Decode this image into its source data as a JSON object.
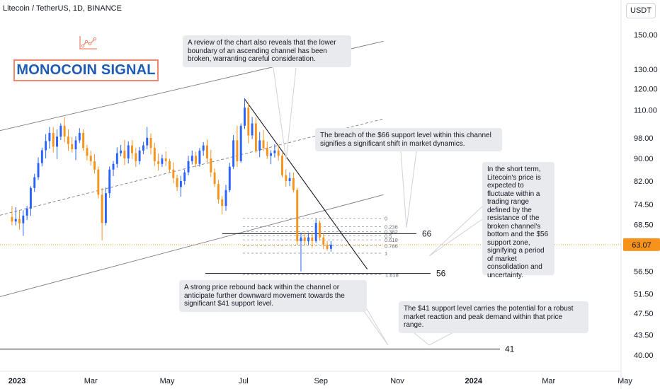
{
  "header": {
    "symbol": "Litecoin / TetherUS, 1D, BINANCE",
    "currency": "USDT"
  },
  "brand": {
    "name": "MONOCOIN SIGNAL"
  },
  "annotations": [
    {
      "id": "n1",
      "text": "A review of the chart also reveals that the lower boundary of an ascending channel has been broken, warranting careful consideration."
    },
    {
      "id": "n2",
      "text": "The breach of the $66 support level within this channel signifies a significant shift in market dynamics."
    },
    {
      "id": "n3",
      "text": "In the short term, Litecoin's price is expected to fluctuate within a trading range defined by the resistance of the broken channel's bottom and the $56 support zone, signifying a period of market consolidation and uncertainty."
    },
    {
      "id": "n4",
      "text": "A strong price rebound back within the channel or anticipate further downward movement towards the significant $41 support level."
    },
    {
      "id": "n5",
      "text": "The $41 support level carries the potential for a robust market reaction and peak demand within that price range."
    }
  ],
  "colors": {
    "up": "#2962ff",
    "down": "#f7931a",
    "current_price": "#f7931a",
    "channel": "#787b86",
    "fib": "#9598a1",
    "brand": "#1e5bb5",
    "brand_border": "#f0876e"
  },
  "chart_data": {
    "type": "candlestick",
    "symbol": "LTCUSDT",
    "timeframe": "1D",
    "y_axis": {
      "scale": "log",
      "ticks": [
        150.0,
        130.0,
        120.0,
        110.0,
        98.0,
        90.0,
        82.0,
        74.5,
        68.5,
        63.07,
        56.5,
        51.5,
        47.5,
        43.5,
        40.0
      ],
      "tick_labels": [
        "150.00",
        "130.00",
        "120.00",
        "110.00",
        "98.00",
        "90.00",
        "82.00",
        "74.50",
        "68.50",
        "",
        "56.50",
        "51.50",
        "47.50",
        "43.50",
        "40.00"
      ]
    },
    "x_axis": {
      "labels": [
        "2023",
        "Mar",
        "May",
        "Jul",
        "Sep",
        "Nov",
        "2024",
        "Mar",
        "May"
      ],
      "bold": [
        "2023",
        "2024"
      ]
    },
    "current_price": {
      "value": 63.07,
      "label": "63.07"
    },
    "levels": [
      {
        "value": 66,
        "label": "66"
      },
      {
        "value": 56,
        "label": "56"
      },
      {
        "value": 41,
        "label": "41"
      }
    ],
    "fibonacci": {
      "high": 70.3,
      "low": 60.9,
      "levels": [
        {
          "ratio": 0,
          "label": "0"
        },
        {
          "ratio": 0.236,
          "label": "0.236"
        },
        {
          "ratio": 0.382,
          "label": "0.382"
        },
        {
          "ratio": 0.5,
          "label": "0.5"
        },
        {
          "ratio": 0.618,
          "label": "0.618"
        },
        {
          "ratio": 0.786,
          "label": "0.786"
        },
        {
          "ratio": 1,
          "label": "1"
        },
        {
          "ratio": 1.618,
          "label": "1.618"
        }
      ]
    },
    "channel": {
      "upper": [
        [
          "2022-12-27",
          102
        ],
        [
          "2023-10-21",
          146
        ]
      ],
      "mid": [
        [
          "2022-12-27",
          72
        ],
        [
          "2023-10-21",
          106
        ]
      ],
      "lower": [
        [
          "2022-12-27",
          51.5
        ],
        [
          "2023-10-21",
          77.5
        ]
      ]
    },
    "trendline": [
      [
        "2023-07-02",
        115
      ],
      [
        "2023-10-08",
        57
      ]
    ],
    "candles": [
      [
        "2022-12-28",
        70.7,
        74.0,
        68.3,
        69.4
      ],
      [
        "2022-12-31",
        69.4,
        73.6,
        68.3,
        70.1
      ],
      [
        "2023-01-03",
        70.1,
        72.6,
        67.1,
        68.9
      ],
      [
        "2023-01-06",
        68.9,
        72.7,
        65.4,
        71.1
      ],
      [
        "2023-01-09",
        71.1,
        74.0,
        69.8,
        73.2
      ],
      [
        "2023-01-12",
        73.2,
        80.3,
        71.0,
        79.7
      ],
      [
        "2023-01-15",
        79.7,
        84.5,
        78.4,
        83.3
      ],
      [
        "2023-01-18",
        83.3,
        90.4,
        82.4,
        88.3
      ],
      [
        "2023-01-21",
        88.3,
        94.1,
        87.1,
        93.1
      ],
      [
        "2023-01-24",
        93.1,
        99.5,
        90.0,
        96.7
      ],
      [
        "2023-01-27",
        96.7,
        102.5,
        93.7,
        100.0
      ],
      [
        "2023-01-30",
        100.0,
        102.5,
        92.3,
        94.5
      ],
      [
        "2023-02-02",
        94.5,
        101.5,
        89.8,
        98.5
      ],
      [
        "2023-02-05",
        98.5,
        104.0,
        97.1,
        103.0
      ],
      [
        "2023-02-08",
        103.0,
        106.7,
        96.2,
        98.5
      ],
      [
        "2023-02-11",
        98.5,
        101.5,
        92.9,
        95.5
      ],
      [
        "2023-02-14",
        95.5,
        98.3,
        92.3,
        93.5
      ],
      [
        "2023-02-17",
        93.5,
        98.7,
        89.4,
        97.0
      ],
      [
        "2023-02-20",
        97.0,
        102.0,
        95.9,
        100.0
      ],
      [
        "2023-02-23",
        100.0,
        101.5,
        92.9,
        94.0
      ],
      [
        "2023-02-26",
        94.0,
        95.2,
        89.3,
        91.0
      ],
      [
        "2023-03-01",
        91.0,
        92.9,
        87.4,
        89.0
      ],
      [
        "2023-03-04",
        89.0,
        91.6,
        84.6,
        86.0
      ],
      [
        "2023-03-07",
        86.0,
        87.1,
        76.3,
        77.5
      ],
      [
        "2023-03-10",
        77.5,
        79.6,
        64.2,
        69.0
      ],
      [
        "2023-03-13",
        69.0,
        79.8,
        68.3,
        78.0
      ],
      [
        "2023-03-16",
        78.0,
        87.1,
        76.5,
        86.0
      ],
      [
        "2023-03-19",
        86.0,
        89.1,
        83.7,
        88.0
      ],
      [
        "2023-03-22",
        88.0,
        94.2,
        86.6,
        92.0
      ],
      [
        "2023-03-25",
        92.0,
        95.2,
        90.8,
        93.0
      ],
      [
        "2023-03-28",
        93.0,
        97.2,
        87.6,
        90.0
      ],
      [
        "2023-03-31",
        90.0,
        96.6,
        88.2,
        95.0
      ],
      [
        "2023-04-03",
        95.0,
        97.1,
        89.8,
        92.0
      ],
      [
        "2023-04-06",
        92.0,
        94.0,
        86.9,
        89.0
      ],
      [
        "2023-04-09",
        89.0,
        94.4,
        87.8,
        93.0
      ],
      [
        "2023-04-12",
        93.0,
        96.4,
        91.6,
        95.0
      ],
      [
        "2023-04-15",
        95.0,
        102.5,
        93.5,
        98.0
      ],
      [
        "2023-04-18",
        98.0,
        99.8,
        91.5,
        94.0
      ],
      [
        "2023-04-21",
        94.0,
        96.0,
        87.2,
        89.0
      ],
      [
        "2023-04-24",
        89.0,
        91.8,
        85.6,
        88.0
      ],
      [
        "2023-04-27",
        88.0,
        91.4,
        86.9,
        90.0
      ],
      [
        "2023-04-30",
        90.0,
        92.7,
        87.2,
        89.0
      ],
      [
        "2023-05-03",
        89.0,
        89.9,
        85.1,
        86.0
      ],
      [
        "2023-05-06",
        86.0,
        88.6,
        81.3,
        83.0
      ],
      [
        "2023-05-09",
        83.0,
        84.2,
        78.7,
        80.0
      ],
      [
        "2023-05-12",
        80.0,
        83.8,
        76.9,
        82.0
      ],
      [
        "2023-05-15",
        82.0,
        86.0,
        80.8,
        85.0
      ],
      [
        "2023-05-18",
        85.0,
        91.0,
        84.0,
        89.0
      ],
      [
        "2023-05-21",
        89.0,
        93.0,
        87.8,
        91.0
      ],
      [
        "2023-05-24",
        91.0,
        92.5,
        86.8,
        88.0
      ],
      [
        "2023-05-27",
        88.0,
        94.0,
        87.0,
        93.0
      ],
      [
        "2023-05-30",
        93.0,
        96.3,
        91.0,
        95.0
      ],
      [
        "2023-06-02",
        95.0,
        97.3,
        88.6,
        90.0
      ],
      [
        "2023-06-05",
        90.0,
        93.3,
        83.4,
        85.0
      ],
      [
        "2023-06-08",
        85.0,
        86.4,
        80.0,
        81.0
      ],
      [
        "2023-06-11",
        81.0,
        82.4,
        74.7,
        76.0
      ],
      [
        "2023-06-14",
        76.0,
        77.1,
        71.5,
        74.0
      ],
      [
        "2023-06-17",
        74.0,
        80.7,
        72.5,
        79.0
      ],
      [
        "2023-06-20",
        79.0,
        88.4,
        78.3,
        87.0
      ],
      [
        "2023-06-23",
        87.0,
        99.1,
        86.2,
        97.0
      ],
      [
        "2023-06-26",
        97.0,
        103.0,
        86.9,
        89.0
      ],
      [
        "2023-06-29",
        89.0,
        104.0,
        88.5,
        103.0
      ],
      [
        "2023-07-02",
        103.0,
        115.4,
        101.6,
        111.0
      ],
      [
        "2023-07-05",
        111.0,
        113.2,
        95.8,
        99.0
      ],
      [
        "2023-07-08",
        99.0,
        106.8,
        97.5,
        104.0
      ],
      [
        "2023-07-11",
        104.0,
        106.7,
        92.1,
        93.0
      ],
      [
        "2023-07-14",
        93.0,
        100.4,
        90.5,
        97.0
      ],
      [
        "2023-07-17",
        97.0,
        101.2,
        92.8,
        94.0
      ],
      [
        "2023-07-20",
        94.0,
        96.4,
        89.8,
        91.0
      ],
      [
        "2023-07-23",
        91.0,
        93.1,
        87.9,
        92.0
      ],
      [
        "2023-07-26",
        92.0,
        95.4,
        90.4,
        93.0
      ],
      [
        "2023-07-29",
        93.0,
        95.1,
        89.2,
        91.0
      ],
      [
        "2023-08-01",
        91.0,
        92.1,
        83.3,
        84.0
      ],
      [
        "2023-08-04",
        84.0,
        86.1,
        80.1,
        82.0
      ],
      [
        "2023-08-07",
        82.0,
        85.0,
        80.3,
        83.0
      ],
      [
        "2023-08-10",
        83.0,
        84.9,
        78.2,
        79.0
      ],
      [
        "2023-08-13",
        79.0,
        79.7,
        63.1,
        64.0
      ],
      [
        "2023-08-16",
        64.0,
        66.3,
        56.5,
        65.0
      ],
      [
        "2023-08-19",
        65.0,
        66.3,
        62.9,
        64.0
      ],
      [
        "2023-08-22",
        64.0,
        66.3,
        63.0,
        65.0
      ],
      [
        "2023-08-25",
        65.0,
        66.0,
        62.3,
        64.0
      ],
      [
        "2023-08-28",
        64.0,
        70.2,
        63.5,
        69.0
      ],
      [
        "2023-08-31",
        69.0,
        69.7,
        64.1,
        65.0
      ],
      [
        "2023-09-03",
        65.0,
        66.0,
        61.9,
        63.0
      ],
      [
        "2023-09-06",
        63.0,
        64.0,
        61.5,
        62.0
      ],
      [
        "2023-09-09",
        62.0,
        64.0,
        61.3,
        63.07
      ]
    ]
  }
}
